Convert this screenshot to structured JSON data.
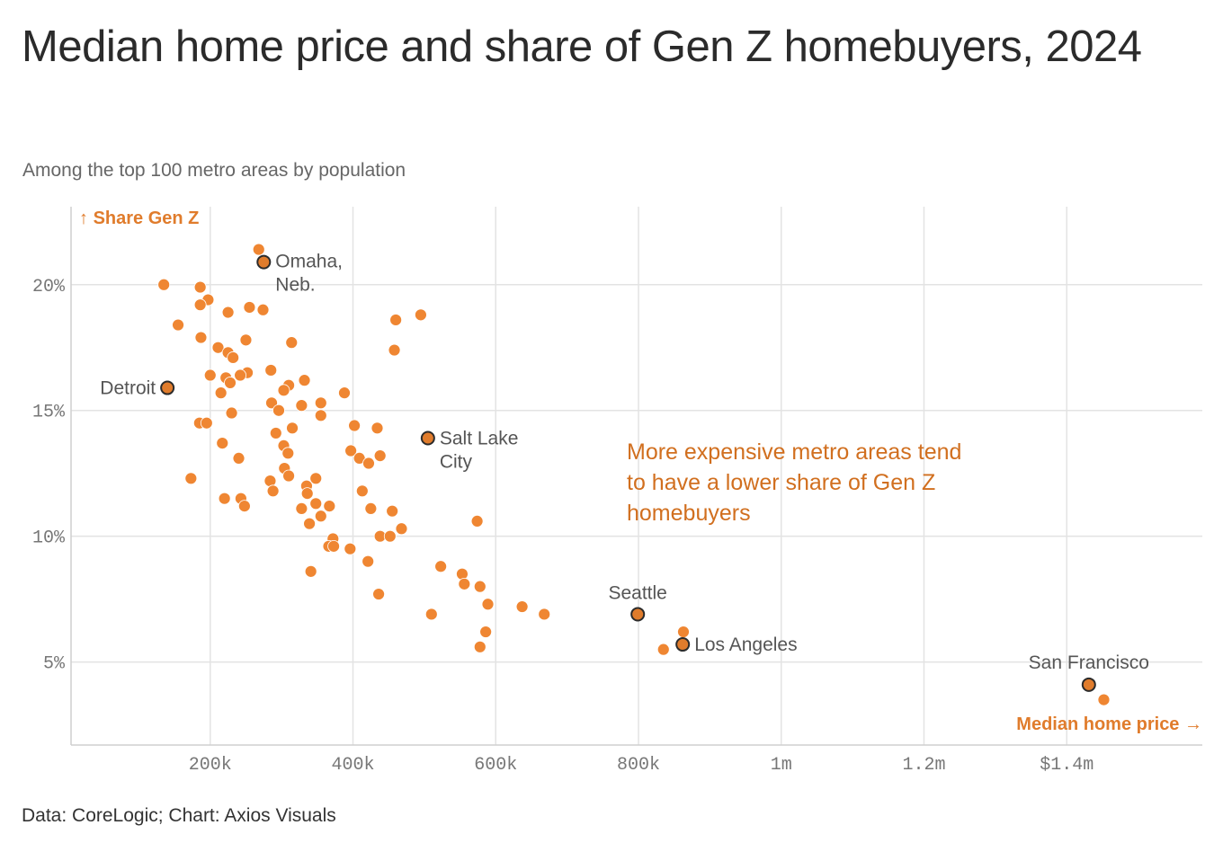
{
  "title": "Median home price and share of Gen Z homebuyers, 2024",
  "subtitle": "Among the top 100 metro areas by population",
  "footer": "Data: CoreLogic; Chart: Axios Visuals",
  "colors": {
    "point": "#ef8632",
    "highlight_point": "#e07c2c",
    "highlight_stroke": "#2b2b2b",
    "annotation": "#d16f1f",
    "axis_title": "#e07c2c",
    "grid": "#e3e3e3"
  },
  "chart_data": {
    "type": "scatter",
    "title": "Median home price and share of Gen Z homebuyers, 2024",
    "subtitle": "Among the top 100 metro areas by population",
    "xlabel": "Median home price",
    "ylabel": "Share Gen Z",
    "xlim": [
      5000,
      1590000
    ],
    "ylim": [
      1.7,
      23.1
    ],
    "grid": true,
    "x_ticks": [
      {
        "value": 200000,
        "label": "200k"
      },
      {
        "value": 400000,
        "label": "400k"
      },
      {
        "value": 600000,
        "label": "600k"
      },
      {
        "value": 800000,
        "label": "800k"
      },
      {
        "value": 1000000,
        "label": "1m"
      },
      {
        "value": 1200000,
        "label": "1.2m"
      },
      {
        "value": 1400000,
        "label": "$1.4m"
      }
    ],
    "y_ticks": [
      {
        "value": 5,
        "label": "5%"
      },
      {
        "value": 10,
        "label": "10%"
      },
      {
        "value": 15,
        "label": "15%"
      },
      {
        "value": 20,
        "label": "20%"
      }
    ],
    "highlighted": [
      {
        "name": "Omaha, Neb.",
        "lines": [
          "Omaha,",
          "Neb."
        ],
        "x": 275000,
        "y": 20.9
      },
      {
        "name": "Detroit",
        "lines": [
          "Detroit"
        ],
        "x": 140000,
        "y": 15.9
      },
      {
        "name": "Salt Lake City",
        "lines": [
          "Salt Lake",
          "City"
        ],
        "x": 505000,
        "y": 13.9
      },
      {
        "name": "Seattle",
        "lines": [
          "Seattle"
        ],
        "x": 799000,
        "y": 6.9
      },
      {
        "name": "Los Angeles",
        "lines": [
          "Los Angeles"
        ],
        "x": 862000,
        "y": 5.7
      },
      {
        "name": "San Francisco",
        "lines": [
          "San Francisco"
        ],
        "x": 1431000,
        "y": 4.1
      }
    ],
    "annotation": [
      "More expensive metro areas tend",
      "to have a lower share of Gen Z",
      "homebuyers"
    ],
    "points": [
      {
        "x": 268000,
        "y": 21.4
      },
      {
        "x": 135000,
        "y": 20.0
      },
      {
        "x": 186000,
        "y": 19.9
      },
      {
        "x": 197000,
        "y": 19.4
      },
      {
        "x": 186000,
        "y": 19.2
      },
      {
        "x": 255000,
        "y": 19.1
      },
      {
        "x": 274000,
        "y": 19.0
      },
      {
        "x": 225000,
        "y": 18.9
      },
      {
        "x": 155000,
        "y": 18.4
      },
      {
        "x": 460000,
        "y": 18.6
      },
      {
        "x": 495000,
        "y": 18.8
      },
      {
        "x": 187000,
        "y": 17.9
      },
      {
        "x": 250000,
        "y": 17.8
      },
      {
        "x": 314000,
        "y": 17.7
      },
      {
        "x": 211000,
        "y": 17.5
      },
      {
        "x": 225000,
        "y": 17.3
      },
      {
        "x": 232000,
        "y": 17.1
      },
      {
        "x": 458000,
        "y": 17.4
      },
      {
        "x": 200000,
        "y": 16.4
      },
      {
        "x": 252000,
        "y": 16.5
      },
      {
        "x": 242000,
        "y": 16.4
      },
      {
        "x": 285000,
        "y": 16.6
      },
      {
        "x": 222000,
        "y": 16.3
      },
      {
        "x": 228000,
        "y": 16.1
      },
      {
        "x": 332000,
        "y": 16.2
      },
      {
        "x": 310000,
        "y": 16.0
      },
      {
        "x": 303000,
        "y": 15.8
      },
      {
        "x": 215000,
        "y": 15.7
      },
      {
        "x": 388000,
        "y": 15.7
      },
      {
        "x": 286000,
        "y": 15.3
      },
      {
        "x": 296000,
        "y": 15.0
      },
      {
        "x": 328000,
        "y": 15.2
      },
      {
        "x": 355000,
        "y": 15.3
      },
      {
        "x": 230000,
        "y": 14.9
      },
      {
        "x": 355000,
        "y": 14.8
      },
      {
        "x": 185000,
        "y": 14.5
      },
      {
        "x": 195000,
        "y": 14.5
      },
      {
        "x": 315000,
        "y": 14.3
      },
      {
        "x": 292000,
        "y": 14.1
      },
      {
        "x": 402000,
        "y": 14.4
      },
      {
        "x": 434000,
        "y": 14.3
      },
      {
        "x": 217000,
        "y": 13.7
      },
      {
        "x": 303000,
        "y": 13.6
      },
      {
        "x": 309000,
        "y": 13.3
      },
      {
        "x": 397000,
        "y": 13.4
      },
      {
        "x": 409000,
        "y": 13.1
      },
      {
        "x": 422000,
        "y": 12.9
      },
      {
        "x": 438000,
        "y": 13.2
      },
      {
        "x": 240000,
        "y": 13.1
      },
      {
        "x": 304000,
        "y": 12.7
      },
      {
        "x": 310000,
        "y": 12.4
      },
      {
        "x": 173000,
        "y": 12.3
      },
      {
        "x": 284000,
        "y": 12.2
      },
      {
        "x": 335000,
        "y": 12.0
      },
      {
        "x": 348000,
        "y": 12.3
      },
      {
        "x": 288000,
        "y": 11.8
      },
      {
        "x": 336000,
        "y": 11.7
      },
      {
        "x": 413000,
        "y": 11.8
      },
      {
        "x": 220000,
        "y": 11.5
      },
      {
        "x": 243000,
        "y": 11.5
      },
      {
        "x": 248000,
        "y": 11.2
      },
      {
        "x": 328000,
        "y": 11.1
      },
      {
        "x": 348000,
        "y": 11.3
      },
      {
        "x": 367000,
        "y": 11.2
      },
      {
        "x": 425000,
        "y": 11.1
      },
      {
        "x": 455000,
        "y": 11.0
      },
      {
        "x": 355000,
        "y": 10.8
      },
      {
        "x": 339000,
        "y": 10.5
      },
      {
        "x": 574000,
        "y": 10.6
      },
      {
        "x": 468000,
        "y": 10.3
      },
      {
        "x": 438000,
        "y": 10.0
      },
      {
        "x": 452000,
        "y": 10.0
      },
      {
        "x": 372000,
        "y": 9.9
      },
      {
        "x": 366000,
        "y": 9.6
      },
      {
        "x": 373000,
        "y": 9.6
      },
      {
        "x": 396000,
        "y": 9.5
      },
      {
        "x": 421000,
        "y": 9.0
      },
      {
        "x": 523000,
        "y": 8.8
      },
      {
        "x": 553000,
        "y": 8.5
      },
      {
        "x": 341000,
        "y": 8.6
      },
      {
        "x": 556000,
        "y": 8.1
      },
      {
        "x": 578000,
        "y": 8.0
      },
      {
        "x": 436000,
        "y": 7.7
      },
      {
        "x": 589000,
        "y": 7.3
      },
      {
        "x": 637000,
        "y": 7.2
      },
      {
        "x": 510000,
        "y": 6.9
      },
      {
        "x": 668000,
        "y": 6.9
      },
      {
        "x": 586000,
        "y": 6.2
      },
      {
        "x": 578000,
        "y": 5.6
      },
      {
        "x": 863000,
        "y": 6.2
      },
      {
        "x": 835000,
        "y": 5.5
      },
      {
        "x": 1452000,
        "y": 3.5
      }
    ]
  }
}
